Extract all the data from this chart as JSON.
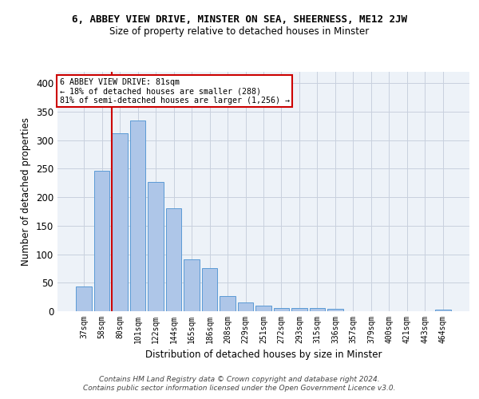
{
  "title1": "6, ABBEY VIEW DRIVE, MINSTER ON SEA, SHEERNESS, ME12 2JW",
  "title2": "Size of property relative to detached houses in Minster",
  "xlabel": "Distribution of detached houses by size in Minster",
  "ylabel": "Number of detached properties",
  "footer1": "Contains HM Land Registry data © Crown copyright and database right 2024.",
  "footer2": "Contains public sector information licensed under the Open Government Licence v3.0.",
  "categories": [
    "37sqm",
    "58sqm",
    "80sqm",
    "101sqm",
    "122sqm",
    "144sqm",
    "165sqm",
    "186sqm",
    "208sqm",
    "229sqm",
    "251sqm",
    "272sqm",
    "293sqm",
    "315sqm",
    "336sqm",
    "357sqm",
    "379sqm",
    "400sqm",
    "421sqm",
    "443sqm",
    "464sqm"
  ],
  "values": [
    44,
    246,
    312,
    335,
    227,
    180,
    91,
    76,
    26,
    16,
    10,
    5,
    5,
    5,
    4,
    0,
    0,
    0,
    0,
    0,
    3
  ],
  "bar_color": "#aec6e8",
  "bar_edge_color": "#5b9bd5",
  "vline_bar_index": 2,
  "vline_color": "#cc0000",
  "annotation_line1": "6 ABBEY VIEW DRIVE: 81sqm",
  "annotation_line2": "← 18% of detached houses are smaller (288)",
  "annotation_line3": "81% of semi-detached houses are larger (1,256) →",
  "annotation_box_color": "#ffffff",
  "annotation_box_edge_color": "#cc0000",
  "ylim": [
    0,
    420
  ],
  "yticks": [
    0,
    50,
    100,
    150,
    200,
    250,
    300,
    350,
    400
  ],
  "grid_color": "#c8d0de",
  "background_color": "#edf2f8"
}
